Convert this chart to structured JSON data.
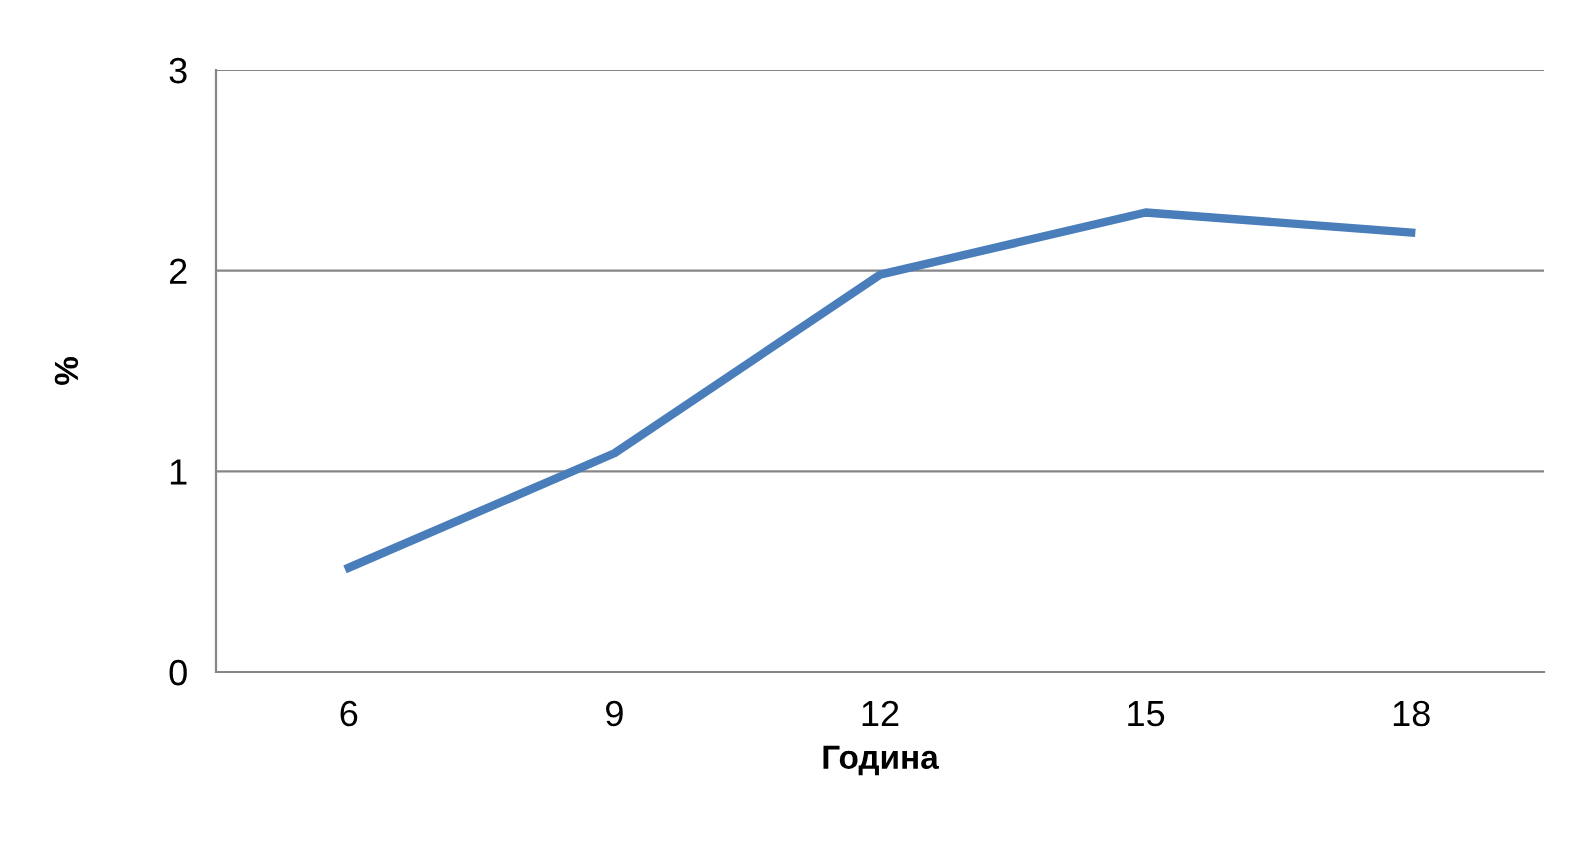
{
  "chart_data": {
    "type": "line",
    "xlabel": "Година",
    "ylabel": "%",
    "categories": [
      "6",
      "9",
      "12",
      "15",
      "18"
    ],
    "series": [
      {
        "color": "#4a7ebb",
        "values": [
          0.52,
          1.09,
          1.98,
          2.29,
          2.19
        ]
      }
    ],
    "ylim": [
      0,
      3
    ],
    "yticks": [
      0,
      1,
      2,
      3
    ],
    "grid": "y",
    "legend": false,
    "marker": "none",
    "line_style": "solid"
  }
}
